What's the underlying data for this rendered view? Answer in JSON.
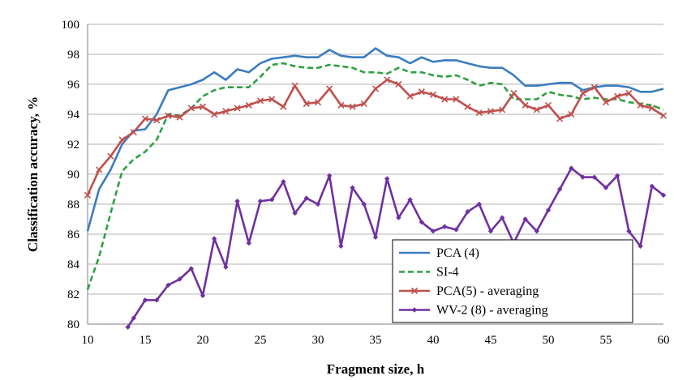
{
  "chart_data": {
    "type": "line",
    "title": "",
    "xlabel": "Fragment size, h",
    "ylabel": "Classification accuracy, %",
    "xlim": [
      10,
      60
    ],
    "ylim": [
      80,
      100
    ],
    "x_ticks": [
      10,
      15,
      20,
      25,
      30,
      35,
      40,
      45,
      50,
      55,
      60
    ],
    "y_ticks": [
      80,
      82,
      84,
      86,
      88,
      90,
      92,
      94,
      96,
      98,
      100
    ],
    "grid": "horizontal",
    "legend_position": "bottom-right",
    "series": [
      {
        "name": "PCA (4)",
        "color": "#3b7dbf",
        "style": "solid",
        "marker": "none",
        "x": [
          10,
          11,
          12,
          13,
          14,
          15,
          16,
          17,
          18,
          19,
          20,
          21,
          22,
          23,
          24,
          25,
          26,
          27,
          28,
          29,
          30,
          31,
          32,
          33,
          34,
          35,
          36,
          37,
          38,
          39,
          40,
          41,
          42,
          43,
          44,
          45,
          46,
          47,
          48,
          49,
          50,
          51,
          52,
          53,
          54,
          55,
          56,
          57,
          58,
          59,
          60
        ],
        "y": [
          86.2,
          89.0,
          90.3,
          92.0,
          92.9,
          93.0,
          94.0,
          95.6,
          95.8,
          96.0,
          96.3,
          96.8,
          96.3,
          97.0,
          96.8,
          97.4,
          97.7,
          97.8,
          97.9,
          97.8,
          97.8,
          98.3,
          97.9,
          97.8,
          97.8,
          98.4,
          97.9,
          97.8,
          97.4,
          97.8,
          97.5,
          97.6,
          97.6,
          97.4,
          97.2,
          97.1,
          97.1,
          96.6,
          95.9,
          95.9,
          96.0,
          96.1,
          96.1,
          95.6,
          95.8,
          95.9,
          95.9,
          95.8,
          95.5,
          95.5,
          95.7
        ]
      },
      {
        "name": "SI-4",
        "color": "#2ea043",
        "style": "dashed",
        "marker": "none",
        "x": [
          10,
          11,
          12,
          13,
          14,
          15,
          16,
          17,
          18,
          19,
          20,
          21,
          22,
          23,
          24,
          25,
          26,
          27,
          28,
          29,
          30,
          31,
          32,
          33,
          34,
          35,
          36,
          37,
          38,
          39,
          40,
          41,
          42,
          43,
          44,
          45,
          46,
          47,
          48,
          49,
          50,
          51,
          52,
          53,
          54,
          55,
          56,
          57,
          58,
          59,
          60
        ],
        "y": [
          82.3,
          84.5,
          87.4,
          90.2,
          91.0,
          91.5,
          92.3,
          94.0,
          93.9,
          94.4,
          95.2,
          95.6,
          95.8,
          95.8,
          95.8,
          96.5,
          97.3,
          97.4,
          97.2,
          97.1,
          97.1,
          97.3,
          97.2,
          97.1,
          96.8,
          96.8,
          96.7,
          97.1,
          96.8,
          96.8,
          96.6,
          96.5,
          96.6,
          96.3,
          95.9,
          96.1,
          96.0,
          95.0,
          95.0,
          95.0,
          95.5,
          95.3,
          95.2,
          95.0,
          95.1,
          95.0,
          95.0,
          94.8,
          94.7,
          94.6,
          94.3
        ]
      },
      {
        "name": "PCA(5) - averaging",
        "color": "#c0504d",
        "style": "solid",
        "marker": "x",
        "x": [
          10,
          11,
          12,
          13,
          14,
          15,
          16,
          17,
          18,
          19,
          20,
          21,
          22,
          23,
          24,
          25,
          26,
          27,
          28,
          29,
          30,
          31,
          32,
          33,
          34,
          35,
          36,
          37,
          38,
          39,
          40,
          41,
          42,
          43,
          44,
          45,
          46,
          47,
          48,
          49,
          50,
          51,
          52,
          53,
          54,
          55,
          56,
          57,
          58,
          59,
          60
        ],
        "y": [
          88.6,
          90.3,
          91.2,
          92.3,
          92.8,
          93.7,
          93.6,
          93.9,
          93.8,
          94.4,
          94.5,
          94.0,
          94.2,
          94.4,
          94.6,
          94.9,
          95.0,
          94.5,
          95.9,
          94.7,
          94.8,
          95.7,
          94.6,
          94.5,
          94.7,
          95.7,
          96.3,
          96.0,
          95.2,
          95.5,
          95.3,
          95.0,
          95.0,
          94.5,
          94.1,
          94.2,
          94.3,
          95.4,
          94.6,
          94.3,
          94.6,
          93.7,
          94.0,
          95.4,
          95.8,
          94.8,
          95.2,
          95.4,
          94.6,
          94.4,
          93.9
        ]
      },
      {
        "name": "WV-2 (8) - averaging",
        "color": "#7030a0",
        "style": "solid",
        "marker": "diamond",
        "x": [
          13.5,
          14,
          15,
          16,
          17,
          18,
          19,
          20,
          21,
          22,
          23,
          24,
          25,
          26,
          27,
          28,
          29,
          30,
          31,
          32,
          33,
          34,
          35,
          36,
          37,
          38,
          39,
          40,
          41,
          42,
          43,
          44,
          45,
          46,
          47,
          48,
          49,
          50,
          51,
          52,
          53,
          54,
          55,
          56,
          57,
          58,
          59,
          60
        ],
        "y": [
          79.8,
          80.4,
          81.6,
          81.6,
          82.6,
          83.0,
          83.7,
          81.9,
          85.7,
          83.8,
          88.2,
          85.4,
          88.2,
          88.3,
          89.5,
          87.4,
          88.4,
          88.0,
          89.9,
          85.2,
          89.1,
          88.0,
          85.8,
          89.7,
          87.1,
          88.3,
          86.8,
          86.2,
          86.5,
          86.3,
          87.5,
          88.0,
          86.2,
          87.1,
          85.4,
          87.0,
          86.2,
          87.6,
          89.0,
          90.4,
          89.8,
          89.8,
          89.1,
          89.9,
          86.2,
          85.2,
          89.2,
          88.6
        ]
      }
    ]
  }
}
